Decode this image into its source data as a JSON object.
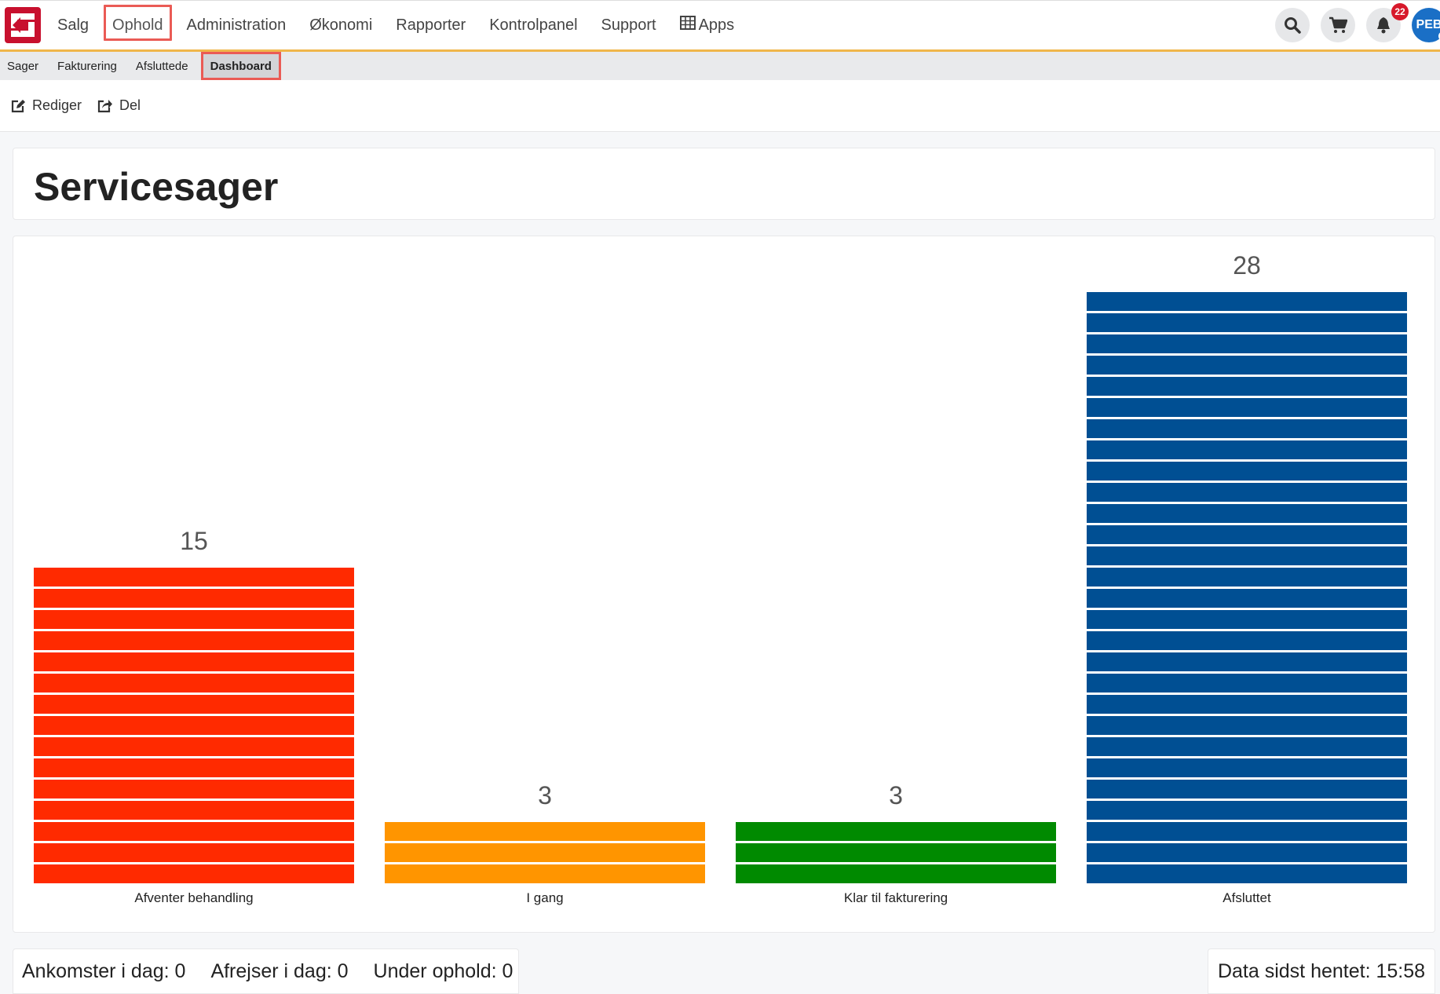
{
  "nav": {
    "items": [
      {
        "label": "Salg",
        "active": false
      },
      {
        "label": "Ophold",
        "active": true
      },
      {
        "label": "Administration",
        "active": false
      },
      {
        "label": "Økonomi",
        "active": false
      },
      {
        "label": "Rapporter",
        "active": false
      },
      {
        "label": "Kontrolpanel",
        "active": false
      },
      {
        "label": "Support",
        "active": false
      }
    ],
    "apps_label": "Apps",
    "notification_count": "22",
    "avatar_initials": "PEB"
  },
  "subnav": {
    "items": [
      {
        "label": "Sager",
        "active": false
      },
      {
        "label": "Fakturering",
        "active": false
      },
      {
        "label": "Afsluttede",
        "active": false
      },
      {
        "label": "Dashboard",
        "active": true
      }
    ]
  },
  "actions": {
    "edit_label": "Rediger",
    "share_label": "Del"
  },
  "page": {
    "title": "Servicesager"
  },
  "chart_data": {
    "type": "bar",
    "categories": [
      "Afventer behandling",
      "I gang",
      "Klar til fakturering",
      "Afsluttet"
    ],
    "values": [
      15,
      3,
      3,
      28
    ],
    "colors": [
      "#ff2a00",
      "#ff9500",
      "#008a00",
      "#004f93"
    ],
    "title": "",
    "xlabel": "",
    "ylabel": "",
    "stacked_units": true
  },
  "footer": {
    "arrivals": "Ankomster i dag: 0",
    "departures": "Afrejser i dag: 0",
    "in_stay": "Under ophold: 0",
    "last_fetched": "Data sidst hentet: 15:58"
  }
}
